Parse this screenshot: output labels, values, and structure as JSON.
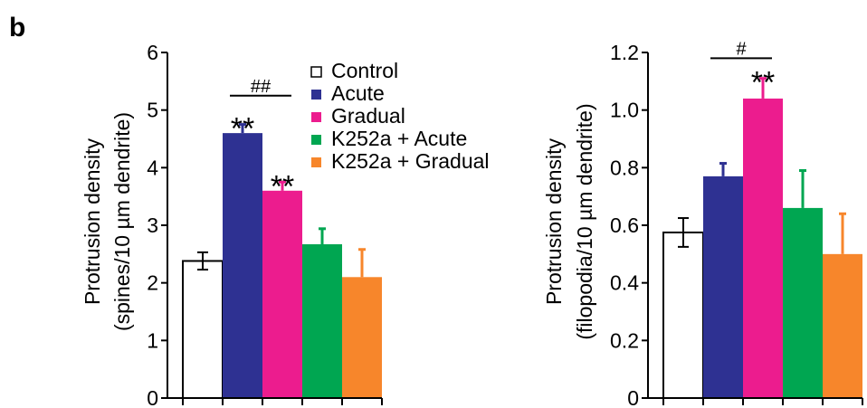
{
  "panel_label": "b",
  "legend": {
    "placement": "top-right of left chart",
    "entries": [
      {
        "label": "Control",
        "color": "#ffffff"
      },
      {
        "label": "Acute",
        "color": "#2e3192"
      },
      {
        "label": "Gradual",
        "color": "#ec1c8e"
      },
      {
        "label": "K252a + Acute",
        "color": "#00a651"
      },
      {
        "label": "K252a + Gradual",
        "color": "#f7862b"
      }
    ]
  },
  "chart_data": [
    {
      "type": "bar",
      "ylabel_line1": "Protrusion density",
      "ylabel_line2": "(spines/10 µm dendrite)",
      "ylim": [
        0,
        6
      ],
      "yticks": [
        "0",
        "1",
        "2",
        "3",
        "4",
        "5",
        "6"
      ],
      "ytick_values": [
        0,
        1,
        2,
        3,
        4,
        5,
        6
      ],
      "categories": [
        "Control",
        "Acute",
        "Gradual",
        "K252a + Acute",
        "K252a + Gradual"
      ],
      "values": [
        2.38,
        4.6,
        3.6,
        2.67,
        2.1
      ],
      "errors": [
        0.15,
        0.15,
        0.15,
        0.27,
        0.48
      ],
      "colors": [
        "#ffffff",
        "#2e3192",
        "#ec1c8e",
        "#00a651",
        "#f7862b"
      ],
      "annotations": [
        {
          "text": "**",
          "bar": 1
        },
        {
          "text": "**",
          "bar": 2
        }
      ],
      "bracket": {
        "text": "##",
        "from_bar": 1,
        "to_bar": 2,
        "value": 5.25
      }
    },
    {
      "type": "bar",
      "ylabel_line1": "Protrusion density",
      "ylabel_line2": "(filopodia/10 µm dendrite)",
      "ylim": [
        0,
        1.2
      ],
      "yticks": [
        "0",
        "0.2",
        "0.4",
        "0.6",
        "0.8",
        "1.0",
        "1.2"
      ],
      "ytick_values": [
        0,
        0.2,
        0.4,
        0.6,
        0.8,
        1.0,
        1.2
      ],
      "categories": [
        "Control",
        "Acute",
        "Gradual",
        "K252a + Acute",
        "K252a + Gradual"
      ],
      "values": [
        0.575,
        0.77,
        1.04,
        0.66,
        0.5
      ],
      "errors": [
        0.05,
        0.045,
        0.07,
        0.13,
        0.14
      ],
      "colors": [
        "#ffffff",
        "#2e3192",
        "#ec1c8e",
        "#00a651",
        "#f7862b"
      ],
      "annotations": [
        {
          "text": "**",
          "bar": 2
        }
      ],
      "bracket": {
        "text": "#",
        "from_bar": 1,
        "to_bar": 2,
        "value": 1.18
      }
    }
  ]
}
